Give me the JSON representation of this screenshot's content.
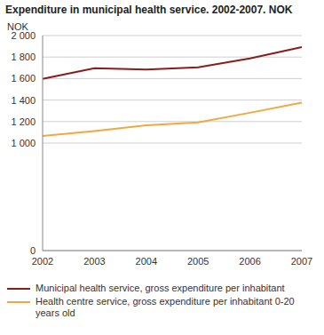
{
  "chart_data": {
    "type": "line",
    "title": "Expenditure in municipal health service. 2002-2007. NOK",
    "y_label": "NOK",
    "categories": [
      "2002",
      "2003",
      "2004",
      "2005",
      "2006",
      "2007"
    ],
    "series": [
      {
        "name": "Municipal health service, gross expenditure per inhabitant",
        "color": "#8b1c1c",
        "values": [
          1597,
          1697,
          1684,
          1705,
          1787,
          1893
        ]
      },
      {
        "name": "Health centre service, gross expenditure per inhabitant 0-20 years old",
        "color": "#f4a640",
        "values": [
          1067,
          1112,
          1165,
          1192,
          1282,
          1376
        ]
      }
    ],
    "ylim": [
      0,
      2000
    ],
    "yticks": [
      0,
      {
        "value": 1000,
        "label": "1 000"
      },
      {
        "value": 1200,
        "label": "1 200"
      },
      {
        "value": 1400,
        "label": "1 400"
      },
      {
        "value": 1600,
        "label": "1 600"
      },
      {
        "value": 1800,
        "label": "1 800"
      },
      {
        "value": 2000,
        "label": "2 000"
      }
    ],
    "grid": true,
    "legend": "bottom"
  }
}
